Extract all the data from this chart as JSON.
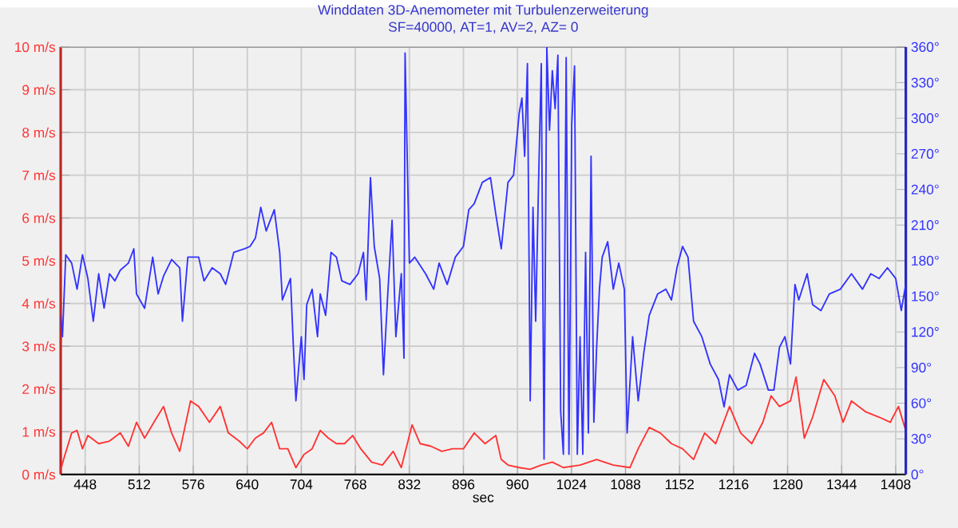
{
  "chart_data": {
    "type": "line",
    "title": "Winddaten 3D-Anemometer mit Turbulenzerweiterung",
    "subtitle": "SF=40000, AT=1, AV=2, AZ= 0",
    "xlabel": "sec",
    "xlim": [
      419,
      1420
    ],
    "xticks": [
      448,
      512,
      576,
      640,
      704,
      768,
      832,
      896,
      960,
      1024,
      1088,
      1152,
      1216,
      1280,
      1344,
      1408
    ],
    "ylim": [
      0,
      10
    ],
    "yticks": [
      {
        "value": 0,
        "label": "0 m/s"
      },
      {
        "value": 1,
        "label": "1 m/s"
      },
      {
        "value": 2,
        "label": "2 m/s"
      },
      {
        "value": 3,
        "label": "3 m/s"
      },
      {
        "value": 4,
        "label": "4 m/s"
      },
      {
        "value": 5,
        "label": "5 m/s"
      },
      {
        "value": 6,
        "label": "6 m/s"
      },
      {
        "value": 7,
        "label": "7 m/s"
      },
      {
        "value": 8,
        "label": "8 m/s"
      },
      {
        "value": 9,
        "label": "9 m/s"
      },
      {
        "value": 10,
        "label": "10 m/s"
      }
    ],
    "y2lim": [
      0,
      360
    ],
    "y2ticks": [
      {
        "value": 0,
        "label": "0°"
      },
      {
        "value": 30,
        "label": "30°"
      },
      {
        "value": 60,
        "label": "60°"
      },
      {
        "value": 90,
        "label": "90°"
      },
      {
        "value": 120,
        "label": "120°"
      },
      {
        "value": 150,
        "label": "150°"
      },
      {
        "value": 180,
        "label": "180°"
      },
      {
        "value": 210,
        "label": "210°"
      },
      {
        "value": 240,
        "label": "240°"
      },
      {
        "value": 270,
        "label": "270°"
      },
      {
        "value": 300,
        "label": "300°"
      },
      {
        "value": 330,
        "label": "330°"
      },
      {
        "value": 360,
        "label": "360°"
      }
    ],
    "grid": true,
    "series": [
      {
        "color": "#ff3333",
        "x": [
          419,
          422.4,
          432,
          438.4,
          444.8,
          451.2,
          464,
          476.8,
          489.6,
          499.2,
          508.8,
          518.4,
          531.2,
          540.8,
          550.4,
          560,
          572.8,
          582.4,
          595.2,
          608,
          617.6,
          630.4,
          640,
          649.6,
          659.2,
          668.8,
          678.4,
          688,
          697.6,
          707.2,
          716.8,
          726.4,
          736,
          745.6,
          755.2,
          764.8,
          774.4,
          787.2,
          800,
          812.8,
          822.4,
          835.2,
          844.8,
          857.6,
          870.4,
          883.2,
          896,
          908.8,
          921.6,
          934.4,
          940.8,
          948.8,
          962,
          975.1,
          988.2,
          1001.3,
          1014.4,
          1034.1,
          1053.8,
          1073.5,
          1093.2,
          1103,
          1116.1,
          1129.2,
          1142.4,
          1155.5,
          1168.6,
          1181.7,
          1194.8,
          1211.2,
          1224.4,
          1237.5,
          1250.6,
          1260.4,
          1270.3,
          1283.4,
          1290,
          1299.8,
          1309.6,
          1322.8,
          1335.9,
          1345.7,
          1355.6,
          1372,
          1388.4,
          1401.5,
          1411.3,
          1419.9
        ],
        "values": [
          0.1,
          0.35,
          0.97,
          1.03,
          0.6,
          0.91,
          0.72,
          0.78,
          0.97,
          0.66,
          1.22,
          0.85,
          1.28,
          1.59,
          0.97,
          0.54,
          1.72,
          1.59,
          1.22,
          1.59,
          0.97,
          0.78,
          0.6,
          0.85,
          0.97,
          1.22,
          0.6,
          0.6,
          0.16,
          0.47,
          0.6,
          1.03,
          0.85,
          0.72,
          0.72,
          0.91,
          0.6,
          0.29,
          0.22,
          0.54,
          0.16,
          1.16,
          0.72,
          0.66,
          0.54,
          0.6,
          0.6,
          0.97,
          0.72,
          0.91,
          0.35,
          0.22,
          0.16,
          0.12,
          0.22,
          0.29,
          0.16,
          0.22,
          0.35,
          0.22,
          0.16,
          0.6,
          1.1,
          0.97,
          0.72,
          0.6,
          0.35,
          0.97,
          0.72,
          1.59,
          0.97,
          0.72,
          1.22,
          1.84,
          1.59,
          1.72,
          2.28,
          0.85,
          1.34,
          2.22,
          1.84,
          1.22,
          1.72,
          1.47,
          1.34,
          1.22,
          1.59,
          1.03
        ]
      },
      {
        "color": "#3333ff",
        "axis": "y2",
        "x": [
          419,
          421.1,
          425,
          432,
          438.4,
          444.8,
          451.2,
          457.6,
          464,
          470.4,
          476.8,
          483.2,
          489.6,
          499.2,
          505.6,
          508.8,
          518.4,
          528,
          534.4,
          540.8,
          550.4,
          560,
          563.2,
          569.6,
          582.4,
          588.8,
          598.4,
          608,
          614.4,
          624,
          636.8,
          643.2,
          649.6,
          656,
          662.4,
          672,
          678.4,
          681.6,
          691.2,
          694.4,
          697.6,
          704,
          707.2,
          710.4,
          716.8,
          723.2,
          726.4,
          732.8,
          739.2,
          745.6,
          752,
          761.6,
          771.2,
          777.6,
          780.8,
          785.9,
          790.4,
          796.8,
          801.3,
          806.4,
          811.5,
          816,
          822.4,
          825.6,
          826.9,
          832,
          838.4,
          851.2,
          860.8,
          867.2,
          876.8,
          886.4,
          896,
          902.4,
          908.8,
          918.4,
          928,
          934.4,
          940.8,
          948.8,
          955.4,
          962,
          965.3,
          968.5,
          971.8,
          975.1,
          978.4,
          981.6,
          984.9,
          988.2,
          991.5,
          994.8,
          998,
          1001.3,
          1004.6,
          1007.9,
          1011.2,
          1014.4,
          1017.7,
          1021,
          1024.3,
          1027.6,
          1030.9,
          1034.1,
          1037.4,
          1040.7,
          1044,
          1047.2,
          1050.5,
          1053.8,
          1057.1,
          1060.4,
          1066.9,
          1073.5,
          1080,
          1086.6,
          1089.9,
          1096.4,
          1103,
          1109.6,
          1116.1,
          1126,
          1135.8,
          1142.4,
          1148.9,
          1155.5,
          1162,
          1168.6,
          1178.4,
          1188.3,
          1198.1,
          1204.7,
          1211.2,
          1221,
          1230.9,
          1240.8,
          1247.3,
          1257.2,
          1263.7,
          1270.3,
          1276.8,
          1283.4,
          1288.7,
          1293.2,
          1303.1,
          1309.6,
          1319.5,
          1329.3,
          1342.4,
          1355.6,
          1368.7,
          1378.5,
          1388.4,
          1398.2,
          1408,
          1414.6,
          1419.9
        ],
        "values": [
          134,
          116,
          185,
          178,
          156,
          185,
          165,
          129,
          169,
          140,
          169,
          163,
          172,
          178,
          190,
          152,
          140,
          183,
          152,
          167,
          181,
          174,
          129,
          183,
          183,
          163,
          174,
          169,
          160,
          187,
          190,
          192,
          199,
          225,
          205,
          223,
          187,
          147,
          165,
          111,
          62,
          116,
          80,
          143,
          156,
          116,
          152,
          134,
          187,
          183,
          163,
          160,
          169,
          187,
          147,
          250,
          192,
          165,
          84,
          152,
          214,
          116,
          169,
          98,
          355,
          178,
          183,
          169,
          156,
          178,
          160,
          183,
          192,
          223,
          228,
          246,
          250,
          219,
          190,
          246,
          252,
          304,
          317,
          268,
          346,
          62,
          225,
          129,
          243,
          346,
          13,
          360,
          290,
          340,
          308,
          353,
          53,
          17,
          351,
          17,
          295,
          344,
          17,
          116,
          17,
          187,
          35,
          268,
          44,
          107,
          156,
          183,
          196,
          156,
          178,
          156,
          35,
          116,
          62,
          102,
          134,
          152,
          156,
          147,
          174,
          192,
          183,
          129,
          116,
          93,
          80,
          57,
          84,
          71,
          75,
          102,
          93,
          71,
          71,
          107,
          116,
          93,
          160,
          147,
          169,
          143,
          138,
          152,
          156,
          169,
          156,
          169,
          165,
          174,
          165,
          138,
          160
        ]
      }
    ]
  }
}
